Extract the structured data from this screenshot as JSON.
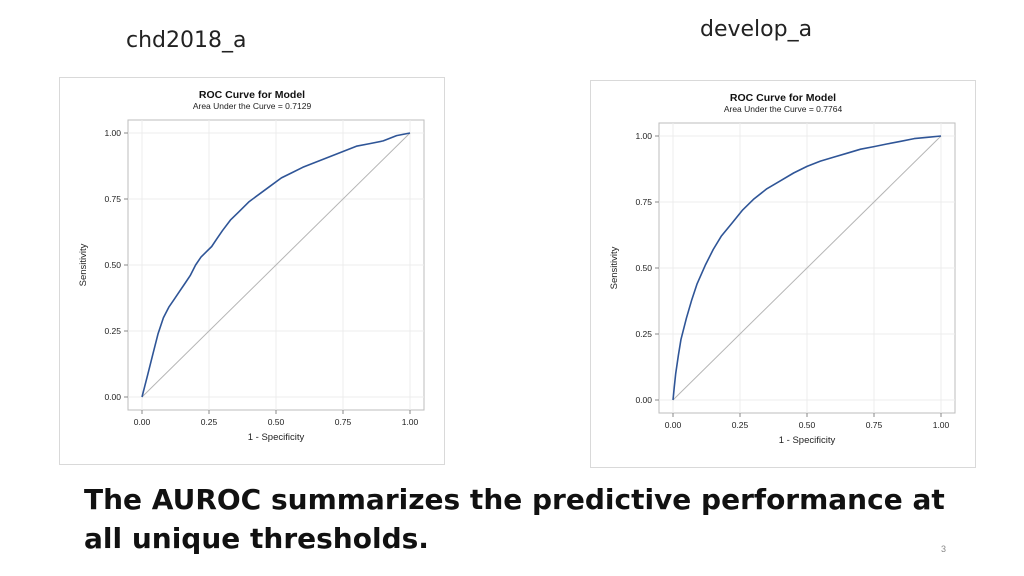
{
  "slide": {
    "caption": "The AUROC summarizes the predictive performance at all unique thresholds.",
    "page_number": "3",
    "colors": {
      "curve": "#2f5597",
      "diagonal": "#b5b5b5",
      "grid": "#ececec",
      "frame": "#bdbdbd"
    }
  },
  "chart_data": [
    {
      "type": "line",
      "dataset_label": "chd2018_a",
      "title": "ROC Curve for Model",
      "subtitle": "Area Under the Curve = 0.7129",
      "xlabel": "1 - Specificity",
      "ylabel": "Sensitivity",
      "xlim": [
        0,
        1
      ],
      "ylim": [
        0,
        1
      ],
      "xticks": [
        "0.00",
        "0.25",
        "0.50",
        "0.75",
        "1.00"
      ],
      "yticks": [
        "0.00",
        "0.25",
        "0.50",
        "0.75",
        "1.00"
      ],
      "grid": true,
      "series": [
        {
          "x": [
            0,
            0.01,
            0.02,
            0.04,
            0.06,
            0.08,
            0.1,
            0.12,
            0.14,
            0.16,
            0.18,
            0.2,
            0.22,
            0.24,
            0.26,
            0.28,
            0.3,
            0.33,
            0.36,
            0.4,
            0.44,
            0.48,
            0.52,
            0.56,
            0.6,
            0.65,
            0.7,
            0.75,
            0.8,
            0.85,
            0.9,
            0.95,
            1.0
          ],
          "y": [
            0,
            0.04,
            0.08,
            0.16,
            0.24,
            0.3,
            0.34,
            0.37,
            0.4,
            0.43,
            0.46,
            0.5,
            0.53,
            0.55,
            0.57,
            0.6,
            0.63,
            0.67,
            0.7,
            0.74,
            0.77,
            0.8,
            0.83,
            0.85,
            0.87,
            0.89,
            0.91,
            0.93,
            0.95,
            0.96,
            0.97,
            0.99,
            1.0
          ]
        },
        {
          "x": [
            0,
            1
          ],
          "y": [
            0,
            1
          ]
        }
      ]
    },
    {
      "type": "line",
      "dataset_label": "develop_a",
      "title": "ROC Curve for Model",
      "subtitle": "Area Under the Curve = 0.7764",
      "xlabel": "1 - Specificity",
      "ylabel": "Sensitivity",
      "xlim": [
        0,
        1
      ],
      "ylim": [
        0,
        1
      ],
      "xticks": [
        "0.00",
        "0.25",
        "0.50",
        "0.75",
        "1.00"
      ],
      "yticks": [
        "0.00",
        "0.25",
        "0.50",
        "0.75",
        "1.00"
      ],
      "grid": true,
      "series": [
        {
          "x": [
            0,
            0.005,
            0.01,
            0.02,
            0.03,
            0.05,
            0.07,
            0.09,
            0.12,
            0.15,
            0.18,
            0.22,
            0.26,
            0.3,
            0.35,
            0.4,
            0.45,
            0.5,
            0.55,
            0.6,
            0.65,
            0.7,
            0.75,
            0.8,
            0.85,
            0.9,
            0.95,
            1.0
          ],
          "y": [
            0,
            0.05,
            0.1,
            0.17,
            0.23,
            0.31,
            0.38,
            0.44,
            0.51,
            0.57,
            0.62,
            0.67,
            0.72,
            0.76,
            0.8,
            0.83,
            0.86,
            0.885,
            0.905,
            0.92,
            0.935,
            0.95,
            0.96,
            0.97,
            0.98,
            0.99,
            0.995,
            1.0
          ]
        },
        {
          "x": [
            0,
            1
          ],
          "y": [
            0,
            1
          ]
        }
      ]
    }
  ]
}
